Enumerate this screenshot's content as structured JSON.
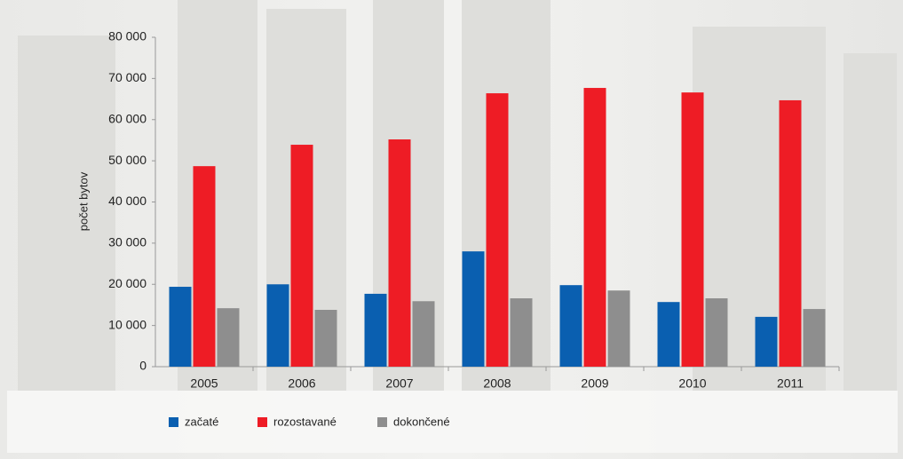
{
  "chart_data": {
    "type": "bar",
    "y_label": "počet bytov",
    "categories": [
      "2005",
      "2006",
      "2007",
      "2008",
      "2009",
      "2010",
      "2011"
    ],
    "series": [
      {
        "name": "začaté",
        "color": "#0a5fb0",
        "values": [
          19400,
          20000,
          17700,
          28000,
          19800,
          15700,
          12100
        ]
      },
      {
        "name": "rozostavané",
        "color": "#ee1c25",
        "values": [
          48700,
          53900,
          55200,
          66400,
          67700,
          66600,
          64700
        ]
      },
      {
        "name": "dokončené",
        "color": "#8e8e8e",
        "values": [
          14200,
          13800,
          15900,
          16600,
          18500,
          16600,
          14000
        ]
      }
    ],
    "ylim": [
      0,
      80000
    ],
    "yticks": [
      0,
      {
        "value": 10000,
        "label": "10 000"
      },
      {
        "value": 20000,
        "label": "20 000"
      },
      {
        "value": 30000,
        "label": "30 000"
      },
      {
        "value": 40000,
        "label": "40 000"
      },
      {
        "value": 50000,
        "label": "50 000"
      },
      {
        "value": 60000,
        "label": "60 000"
      },
      {
        "value": 70000,
        "label": "70 000"
      },
      {
        "value": 80000,
        "label": "80 000"
      }
    ],
    "legend": "bottom"
  }
}
